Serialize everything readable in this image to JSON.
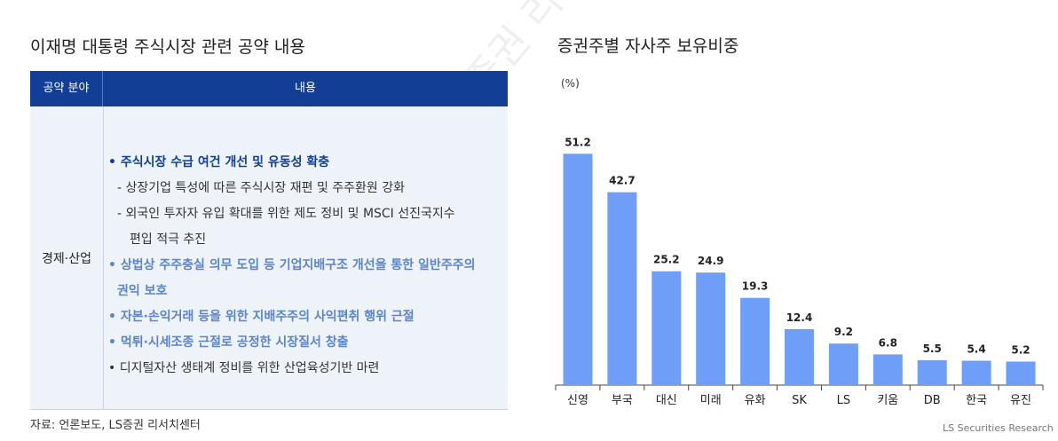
{
  "watermark": "LS증권 리서치센터",
  "left": {
    "title": "이재명 대통령 주식시장 관련 공약 내용",
    "headers": [
      "공약 분야",
      "내용"
    ],
    "category": "경제·산업",
    "lines": [
      {
        "text": "• 주식시장 수급 여건 개선 및 유동성 확충",
        "style": "bold"
      },
      {
        "text": "- 상장기업 특성에 따른 주식시장 재편 및 주주환원 강화",
        "style": "dark"
      },
      {
        "text": "- 외국인 투자자 유입 확대를 위한 제도 정비 및 MSCI 선진국지수",
        "style": "dark"
      },
      {
        "text": "편입 적극 추진",
        "style": "dark"
      },
      {
        "text": "• 상법상 주주충실 의무 도입 등 기업지배구조 개선을 통한 일반주주의",
        "style": "light"
      },
      {
        "text": "권익 보호",
        "style": "light"
      },
      {
        "text": "• 자본·손익거래 등을 위한 지배주주의 사익편취 행위 근절",
        "style": "light"
      },
      {
        "text": "• 먹튀·시세조종 근절로 공정한 시장질서 창출",
        "style": "light"
      },
      {
        "text": "• 디지털자산 생태계 정비를 위한 산업육성기반 마련",
        "style": "dark"
      }
    ],
    "source": "자료: 언론보도, LS증권 리서치센터"
  },
  "right": {
    "title": "증권주별 자사주 보유비중",
    "unit": "(%)",
    "brand": "LS Securities  Research"
  },
  "chart_data": {
    "type": "bar",
    "title": "증권주별 자사주 보유비중",
    "ylabel": "(%)",
    "categories": [
      "신영",
      "부국",
      "대신",
      "미래",
      "유화",
      "SK",
      "LS",
      "키움",
      "DB",
      "한국",
      "유진"
    ],
    "values": [
      51.2,
      42.7,
      25.2,
      24.9,
      19.3,
      12.4,
      9.2,
      6.8,
      5.5,
      5.4,
      5.2
    ],
    "data_labels": [
      "51.2",
      "42.7",
      "25.2",
      "24.9",
      "19.3",
      "12.4",
      "9.2",
      "6.8",
      "5.5",
      "5.4",
      "5.2"
    ],
    "ylim": [
      0,
      55
    ],
    "color": "#6f9ef8",
    "grid": false
  }
}
